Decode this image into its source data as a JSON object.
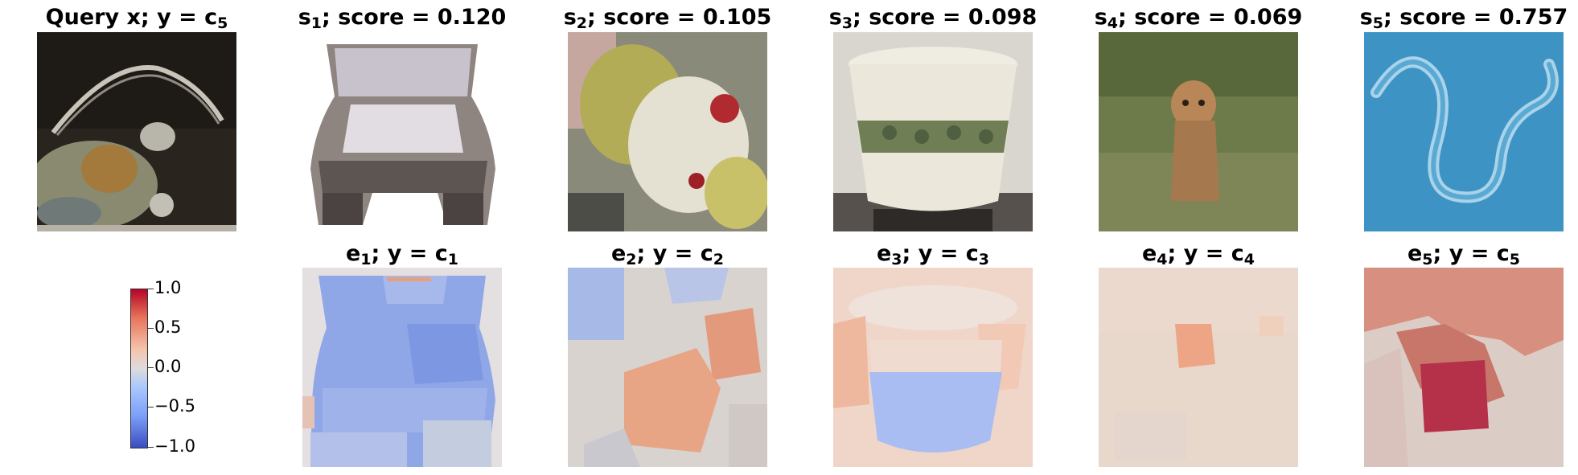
{
  "top_row": [
    {
      "prefix": "Query x; y = c",
      "sub": "5"
    },
    {
      "prefix": "s",
      "sub": "1",
      "suffix": "; score = 0.120"
    },
    {
      "prefix": "s",
      "sub": "2",
      "suffix": "; score = 0.105"
    },
    {
      "prefix": "s",
      "sub": "3",
      "suffix": "; score = 0.098"
    },
    {
      "prefix": "s",
      "sub": "4",
      "suffix": "; score = 0.069"
    },
    {
      "prefix": "s",
      "sub": "5",
      "suffix": "; score = 0.757"
    }
  ],
  "bottom_row": [
    {
      "e": "e",
      "esub": "1",
      "mid": "; y = c",
      "csub": "1"
    },
    {
      "e": "e",
      "esub": "2",
      "mid": "; y = c",
      "csub": "2"
    },
    {
      "e": "e",
      "esub": "3",
      "mid": "; y = c",
      "csub": "3"
    },
    {
      "e": "e",
      "esub": "4",
      "mid": "; y = c",
      "csub": "4"
    },
    {
      "e": "e",
      "esub": "5",
      "mid": "; y = c",
      "csub": "5"
    }
  ],
  "colorbar": {
    "ticks": [
      "1.0",
      "0.5",
      "0.0",
      "−0.5",
      "−1.0"
    ],
    "colormap": [
      "#3b4cc0",
      "#dddcdc",
      "#b40426"
    ]
  }
}
